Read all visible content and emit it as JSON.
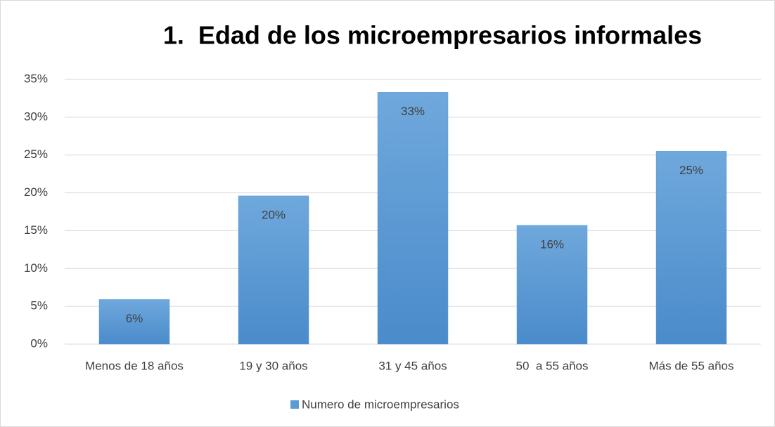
{
  "chart_data": {
    "type": "bar",
    "title": "1.  Edad de los microempresarios informales",
    "categories": [
      "Menos de 18 años",
      "19 y 30 años",
      "31 y 45 años",
      "50  a 55 años",
      "Más de 55 años"
    ],
    "series": [
      {
        "name": "Numero de microempresarios",
        "color": "#5b9bd5",
        "values": [
          5.9,
          19.6,
          33.3,
          15.7,
          25.5
        ],
        "value_labels": [
          "6%",
          "20%",
          "33%",
          "16%",
          "25%"
        ]
      }
    ],
    "ylim": [
      0,
      35
    ],
    "yticks": [
      {
        "value": 0,
        "label": "0%"
      },
      {
        "value": 5,
        "label": "5%"
      },
      {
        "value": 10,
        "label": "10%"
      },
      {
        "value": 15,
        "label": "15%"
      },
      {
        "value": 20,
        "label": "20%"
      },
      {
        "value": 25,
        "label": "25%"
      },
      {
        "value": 30,
        "label": "30%"
      },
      {
        "value": 35,
        "label": "35%"
      }
    ],
    "grid": true,
    "legend": "bottom"
  }
}
